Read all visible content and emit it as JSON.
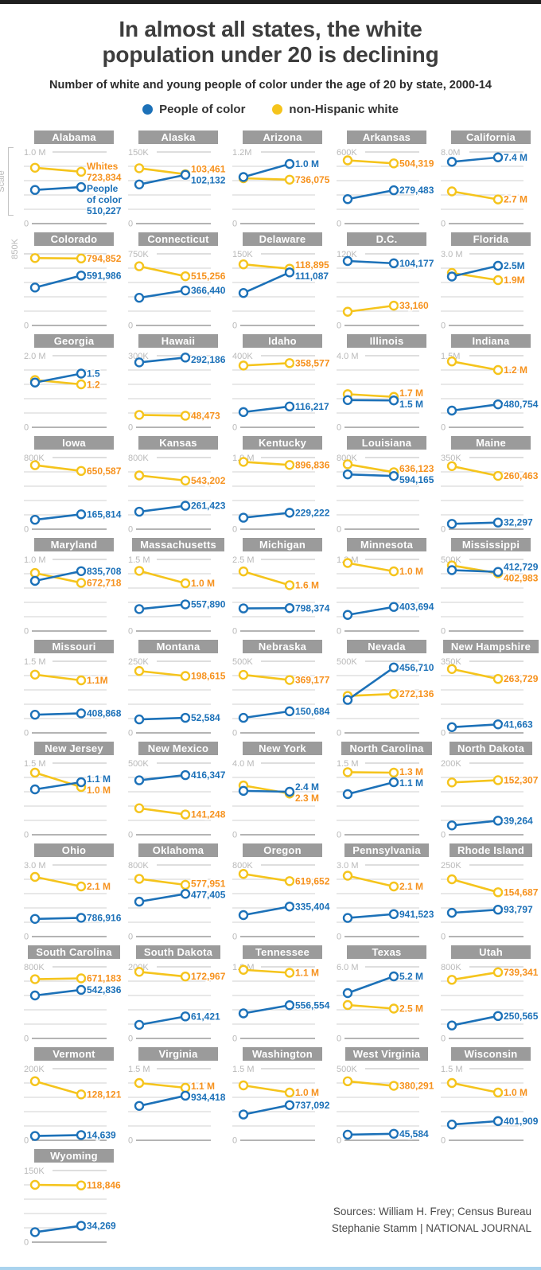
{
  "page": {
    "title_line1": "In almost all states, the white",
    "title_line2": "population under 20 is declining",
    "subtitle": "Number of white and young people of color under the age of 20 by state, 2000-14",
    "scale_axis_label": "Scale",
    "footer_line1": "Sources: William H. Frey; Census Bureau",
    "footer_line2": "Stephanie Stamm | NATIONAL JOURNAL"
  },
  "legend": {
    "poc_label": "People of color",
    "white_label": "non-Hispanic white"
  },
  "colors": {
    "poc_blue": "#1C71B8",
    "white_yellow": "#F5C41C",
    "white_label_orange": "#F6921E",
    "band_gray": "#9B9B9B"
  },
  "chart_data": {
    "type": "line",
    "x_years": [
      2000,
      2014
    ],
    "series_names": [
      "People of color",
      "non-Hispanic white"
    ],
    "states": [
      {
        "name": "Alabama",
        "scale_label": "1.0 M",
        "scale_max": 1000000,
        "white": {
          "y2000": 780000,
          "y2014": 723834,
          "label": "723,834",
          "name_lines": [
            "Whites"
          ]
        },
        "poc": {
          "y2000": 470000,
          "y2014": 510227,
          "label": "510,227",
          "name_lines": [
            "People",
            "of color"
          ]
        }
      },
      {
        "name": "Alaska",
        "scale_label": "150K",
        "scale_max": 150000,
        "white": {
          "y2000": 116000,
          "y2014": 103461,
          "label": "103,461"
        },
        "poc": {
          "y2000": 82000,
          "y2014": 102132,
          "label": "102,132"
        }
      },
      {
        "name": "Arizona",
        "scale_label": "1.2M",
        "scale_max": 1200000,
        "white": {
          "y2000": 760000,
          "y2014": 736075,
          "label": "736,075"
        },
        "poc": {
          "y2000": 780000,
          "y2014": 1000000,
          "label": "1.0 M"
        }
      },
      {
        "name": "Arkansas",
        "scale_label": "600K",
        "scale_max": 600000,
        "white": {
          "y2000": 530000,
          "y2014": 504319,
          "label": "504,319"
        },
        "poc": {
          "y2000": 205000,
          "y2014": 279483,
          "label": "279,483"
        }
      },
      {
        "name": "California",
        "scale_label": "8.0M",
        "scale_max": 8000000,
        "white": {
          "y2000": 3600000,
          "y2014": 2700000,
          "label": "2.7 M"
        },
        "poc": {
          "y2000": 6900000,
          "y2014": 7400000,
          "label": "7.4 M"
        }
      },
      {
        "name": "Colorado",
        "scale_label": "850K",
        "scale_max": 850000,
        "scale_rotated": true,
        "white": {
          "y2000": 800000,
          "y2014": 794852,
          "label": "794,852"
        },
        "poc": {
          "y2000": 450000,
          "y2014": 591986,
          "label": "591,986"
        }
      },
      {
        "name": "Connecticut",
        "scale_label": "750K",
        "scale_max": 750000,
        "white": {
          "y2000": 620000,
          "y2014": 515256,
          "label": "515,256"
        },
        "poc": {
          "y2000": 290000,
          "y2014": 366440,
          "label": "366,440"
        }
      },
      {
        "name": "Delaware",
        "scale_label": "150K",
        "scale_max": 150000,
        "white": {
          "y2000": 128000,
          "y2014": 118895,
          "label": "118,895"
        },
        "poc": {
          "y2000": 68000,
          "y2014": 111087,
          "label": "111,087"
        }
      },
      {
        "name": "D.C.",
        "scale_label": "120K",
        "scale_max": 120000,
        "white": {
          "y2000": 23000,
          "y2014": 33160,
          "label": "33,160"
        },
        "poc": {
          "y2000": 108000,
          "y2014": 104177,
          "label": "104,177"
        }
      },
      {
        "name": "Florida",
        "scale_label": "3.0 M",
        "scale_max": 3000000,
        "white": {
          "y2000": 2200000,
          "y2014": 1900000,
          "label": "1.9M"
        },
        "poc": {
          "y2000": 2050000,
          "y2014": 2500000,
          "label": "2.5M"
        }
      },
      {
        "name": "Georgia",
        "scale_label": "2.0 M",
        "scale_max": 2000000,
        "white": {
          "y2000": 1320000,
          "y2014": 1200000,
          "label": "1.2"
        },
        "poc": {
          "y2000": 1250000,
          "y2014": 1500000,
          "label": "1.5"
        }
      },
      {
        "name": "Hawaii",
        "scale_label": "300K",
        "scale_max": 300000,
        "white": {
          "y2000": 52000,
          "y2014": 48473,
          "label": "48,473"
        },
        "poc": {
          "y2000": 272000,
          "y2014": 292186,
          "label": "292,186"
        }
      },
      {
        "name": "Idaho",
        "scale_label": "400K",
        "scale_max": 400000,
        "white": {
          "y2000": 345000,
          "y2014": 358577,
          "label": "358,577"
        },
        "poc": {
          "y2000": 85000,
          "y2014": 116217,
          "label": "116,217"
        }
      },
      {
        "name": "Illinois",
        "scale_label": "4.0 M",
        "scale_max": 4000000,
        "white": {
          "y2000": 1850000,
          "y2014": 1700000,
          "label": "1.7 M"
        },
        "poc": {
          "y2000": 1520000,
          "y2014": 1500000,
          "label": "1.5 M"
        }
      },
      {
        "name": "Indiana",
        "scale_label": "1.5M",
        "scale_max": 1500000,
        "white": {
          "y2000": 1380000,
          "y2014": 1200000,
          "label": "1.2 M"
        },
        "poc": {
          "y2000": 350000,
          "y2014": 480754,
          "label": "480,754"
        }
      },
      {
        "name": "Iowa",
        "scale_label": "800K",
        "scale_max": 800000,
        "white": {
          "y2000": 715000,
          "y2014": 650587,
          "label": "650,587"
        },
        "poc": {
          "y2000": 105000,
          "y2014": 165814,
          "label": "165,814"
        }
      },
      {
        "name": "Kansas",
        "scale_label": "800K",
        "scale_max": 800000,
        "white": {
          "y2000": 600000,
          "y2014": 543202,
          "label": "543,202"
        },
        "poc": {
          "y2000": 195000,
          "y2014": 261423,
          "label": "261,423"
        }
      },
      {
        "name": "Kentucky",
        "scale_label": "1.0 M",
        "scale_max": 1000000,
        "white": {
          "y2000": 940000,
          "y2014": 896836,
          "label": "896,836"
        },
        "poc": {
          "y2000": 160000,
          "y2014": 229222,
          "label": "229,222"
        }
      },
      {
        "name": "Louisiana",
        "scale_label": "800K",
        "scale_max": 800000,
        "white": {
          "y2000": 725000,
          "y2014": 636123,
          "label": "636,123"
        },
        "poc": {
          "y2000": 612000,
          "y2014": 594165,
          "label": "594,165"
        }
      },
      {
        "name": "Maine",
        "scale_label": "350K",
        "scale_max": 350000,
        "white": {
          "y2000": 308000,
          "y2014": 260463,
          "label": "260,463"
        },
        "poc": {
          "y2000": 26000,
          "y2014": 32297,
          "label": "32,297"
        }
      },
      {
        "name": "Maryland",
        "scale_label": "1.0 M",
        "scale_max": 1000000,
        "white": {
          "y2000": 810000,
          "y2014": 672718,
          "label": "672,718"
        },
        "poc": {
          "y2000": 700000,
          "y2014": 835708,
          "label": "835,708"
        }
      },
      {
        "name": "Massachusetts",
        "scale_label": "1.5 M",
        "scale_max": 1500000,
        "white": {
          "y2000": 1260000,
          "y2014": 1000000,
          "label": "1.0 M"
        },
        "poc": {
          "y2000": 460000,
          "y2014": 557890,
          "label": "557,890"
        }
      },
      {
        "name": "Michigan",
        "scale_label": "2.5 M",
        "scale_max": 2500000,
        "white": {
          "y2000": 2080000,
          "y2014": 1600000,
          "label": "1.6 M"
        },
        "poc": {
          "y2000": 790000,
          "y2014": 798374,
          "label": "798,374"
        }
      },
      {
        "name": "Minnesota",
        "scale_label": "1.2 M",
        "scale_max": 1200000,
        "white": {
          "y2000": 1140000,
          "y2014": 1000000,
          "label": "1.0 M"
        },
        "poc": {
          "y2000": 270000,
          "y2014": 403694,
          "label": "403,694"
        }
      },
      {
        "name": "Mississippi",
        "scale_label": "500K",
        "scale_max": 500000,
        "white": {
          "y2000": 458000,
          "y2014": 402983,
          "label": "402,983"
        },
        "poc": {
          "y2000": 425000,
          "y2014": 412729,
          "label": "412,729"
        }
      },
      {
        "name": "Missouri",
        "scale_label": "1.5 M",
        "scale_max": 1500000,
        "white": {
          "y2000": 1220000,
          "y2014": 1100000,
          "label": "1.1M"
        },
        "poc": {
          "y2000": 380000,
          "y2014": 408868,
          "label": "408,868"
        }
      },
      {
        "name": "Montana",
        "scale_label": "250K",
        "scale_max": 250000,
        "white": {
          "y2000": 216000,
          "y2014": 198615,
          "label": "198,615"
        },
        "poc": {
          "y2000": 47000,
          "y2014": 52584,
          "label": "52,584"
        }
      },
      {
        "name": "Nebraska",
        "scale_label": "500K",
        "scale_max": 500000,
        "white": {
          "y2000": 405000,
          "y2014": 369177,
          "label": "369,177"
        },
        "poc": {
          "y2000": 105000,
          "y2014": 150684,
          "label": "150,684"
        }
      },
      {
        "name": "Nevada",
        "scale_label": "500K",
        "scale_max": 500000,
        "white": {
          "y2000": 258000,
          "y2014": 272136,
          "label": "272,136"
        },
        "poc": {
          "y2000": 230000,
          "y2014": 456710,
          "label": "456,710"
        }
      },
      {
        "name": "New Hampshire",
        "scale_label": "350K",
        "scale_max": 350000,
        "white": {
          "y2000": 312000,
          "y2014": 263729,
          "label": "263,729"
        },
        "poc": {
          "y2000": 28000,
          "y2014": 41663,
          "label": "41,663"
        }
      },
      {
        "name": "New Jersey",
        "scale_label": "1.5 M",
        "scale_max": 1500000,
        "white": {
          "y2000": 1300000,
          "y2014": 1000000,
          "label": "1.0 M"
        },
        "poc": {
          "y2000": 950000,
          "y2014": 1100000,
          "label": "1.1 M"
        }
      },
      {
        "name": "New Mexico",
        "scale_label": "500K",
        "scale_max": 500000,
        "white": {
          "y2000": 185000,
          "y2014": 141248,
          "label": "141,248"
        },
        "poc": {
          "y2000": 380000,
          "y2014": 416347,
          "label": "416,347"
        }
      },
      {
        "name": "New York",
        "scale_label": "4.0 M",
        "scale_max": 4000000,
        "white": {
          "y2000": 2750000,
          "y2014": 2300000,
          "label": "2.3 M"
        },
        "poc": {
          "y2000": 2450000,
          "y2014": 2400000,
          "label": "2.4 M"
        }
      },
      {
        "name": "North Carolina",
        "scale_label": "1.5 M",
        "scale_max": 1500000,
        "white": {
          "y2000": 1310000,
          "y2014": 1300000,
          "label": "1.3 M"
        },
        "poc": {
          "y2000": 850000,
          "y2014": 1100000,
          "label": "1.1 M"
        }
      },
      {
        "name": "North Dakota",
        "scale_label": "200K",
        "scale_max": 200000,
        "white": {
          "y2000": 146000,
          "y2014": 152307,
          "label": "152,307"
        },
        "poc": {
          "y2000": 26000,
          "y2014": 39264,
          "label": "39,264"
        }
      },
      {
        "name": "Ohio",
        "scale_label": "3.0 M",
        "scale_max": 3000000,
        "white": {
          "y2000": 2500000,
          "y2014": 2100000,
          "label": "2.1 M"
        },
        "poc": {
          "y2000": 740000,
          "y2014": 786916,
          "label": "786,916"
        }
      },
      {
        "name": "Oklahoma",
        "scale_label": "800K",
        "scale_max": 800000,
        "white": {
          "y2000": 645000,
          "y2014": 577951,
          "label": "577,951"
        },
        "poc": {
          "y2000": 390000,
          "y2014": 477405,
          "label": "477,405"
        }
      },
      {
        "name": "Oregon",
        "scale_label": "800K",
        "scale_max": 800000,
        "white": {
          "y2000": 700000,
          "y2014": 619652,
          "label": "619,652"
        },
        "poc": {
          "y2000": 240000,
          "y2014": 335404,
          "label": "335,404"
        }
      },
      {
        "name": "Pennsylvania",
        "scale_label": "3.0 M",
        "scale_max": 3000000,
        "white": {
          "y2000": 2550000,
          "y2014": 2100000,
          "label": "2.1 M"
        },
        "poc": {
          "y2000": 780000,
          "y2014": 941523,
          "label": "941,523"
        }
      },
      {
        "name": "Rhode Island",
        "scale_label": "250K",
        "scale_max": 250000,
        "white": {
          "y2000": 200000,
          "y2014": 154687,
          "label": "154,687"
        },
        "poc": {
          "y2000": 83000,
          "y2014": 93797,
          "label": "93,797"
        }
      },
      {
        "name": "South Carolina",
        "scale_label": "800K",
        "scale_max": 800000,
        "white": {
          "y2000": 662000,
          "y2014": 671183,
          "label": "671,183"
        },
        "poc": {
          "y2000": 480000,
          "y2014": 542836,
          "label": "542,836"
        }
      },
      {
        "name": "South Dakota",
        "scale_label": "200K",
        "scale_max": 200000,
        "white": {
          "y2000": 186000,
          "y2014": 172967,
          "label": "172,967"
        },
        "poc": {
          "y2000": 38000,
          "y2014": 61421,
          "label": "61,421"
        }
      },
      {
        "name": "Tennessee",
        "scale_label": "1.2 M",
        "scale_max": 1200000,
        "white": {
          "y2000": 1150000,
          "y2014": 1100000,
          "label": "1.1 M"
        },
        "poc": {
          "y2000": 420000,
          "y2014": 556554,
          "label": "556,554"
        }
      },
      {
        "name": "Texas",
        "scale_label": "6.0 M",
        "scale_max": 6000000,
        "white": {
          "y2000": 2800000,
          "y2014": 2500000,
          "label": "2.5 M"
        },
        "poc": {
          "y2000": 3800000,
          "y2014": 5200000,
          "label": "5.2 M"
        }
      },
      {
        "name": "Utah",
        "scale_label": "800K",
        "scale_max": 800000,
        "white": {
          "y2000": 655000,
          "y2014": 739341,
          "label": "739,341"
        },
        "poc": {
          "y2000": 145000,
          "y2014": 250565,
          "label": "250,565"
        }
      },
      {
        "name": "Vermont",
        "scale_label": "200K",
        "scale_max": 200000,
        "white": {
          "y2000": 165000,
          "y2014": 128121,
          "label": "128,121"
        },
        "poc": {
          "y2000": 12000,
          "y2014": 14639,
          "label": "14,639"
        }
      },
      {
        "name": "Virginia",
        "scale_label": "1.5 M",
        "scale_max": 1500000,
        "white": {
          "y2000": 1200000,
          "y2014": 1100000,
          "label": "1.1 M"
        },
        "poc": {
          "y2000": 720000,
          "y2014": 934418,
          "label": "934,418"
        }
      },
      {
        "name": "Washington",
        "scale_label": "1.5 M",
        "scale_max": 1500000,
        "white": {
          "y2000": 1150000,
          "y2014": 1000000,
          "label": "1.0 M"
        },
        "poc": {
          "y2000": 540000,
          "y2014": 737092,
          "label": "737,092"
        }
      },
      {
        "name": "West Virginia",
        "scale_label": "500K",
        "scale_max": 500000,
        "white": {
          "y2000": 412000,
          "y2014": 380291,
          "label": "380,291"
        },
        "poc": {
          "y2000": 39000,
          "y2014": 45584,
          "label": "45,584"
        }
      },
      {
        "name": "Wisconsin",
        "scale_label": "1.5 M",
        "scale_max": 1500000,
        "white": {
          "y2000": 1200000,
          "y2014": 1000000,
          "label": "1.0 M"
        },
        "poc": {
          "y2000": 330000,
          "y2014": 401909,
          "label": "401,909"
        }
      },
      {
        "name": "Wyoming",
        "scale_label": "150K",
        "scale_max": 150000,
        "white": {
          "y2000": 120000,
          "y2014": 118846,
          "label": "118,846"
        },
        "poc": {
          "y2000": 21000,
          "y2014": 34269,
          "label": "34,269"
        }
      }
    ]
  }
}
